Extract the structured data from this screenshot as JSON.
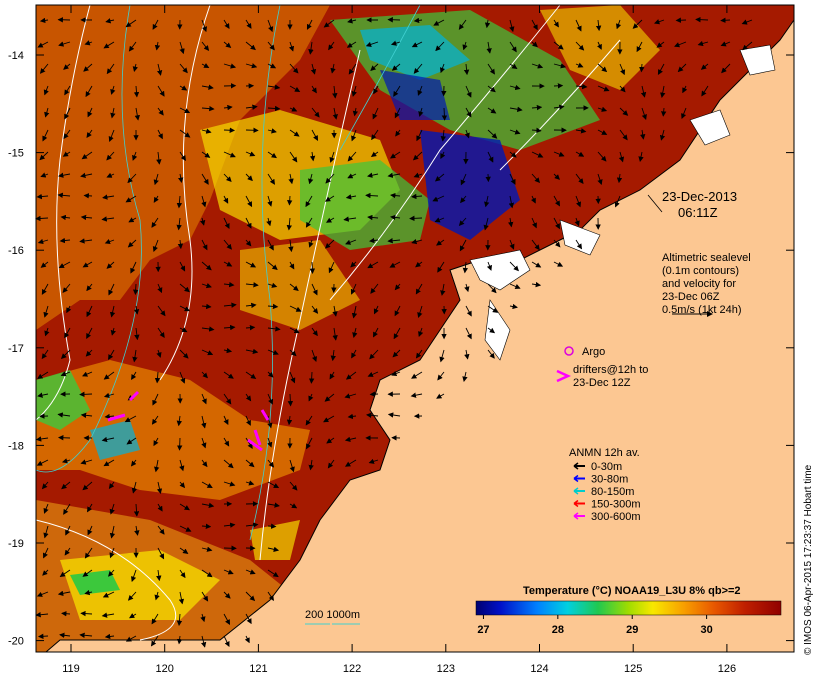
{
  "map": {
    "date_line1": "23-Dec-2013",
    "date_line2": "06:11Z",
    "altimetry_lines": [
      "Altimetric sealevel",
      "(0.1m contours)",
      "and velocity for",
      "23-Dec 06Z",
      "0.5m/s (1kt 24h)"
    ],
    "argo_label": "Argo",
    "drifters_lines": [
      "drifters@12h to",
      "23-Dec 12Z"
    ],
    "anmn_title": "ANMN 12h av.",
    "anmn_items": [
      {
        "label": "0-30m",
        "color": "#000000"
      },
      {
        "label": "30-80m",
        "color": "#0000ff"
      },
      {
        "label": "80-150m",
        "color": "#00cccc"
      },
      {
        "label": "150-300m",
        "color": "#ff0000"
      },
      {
        "label": "300-600m",
        "color": "#ff00ff"
      }
    ],
    "bathy_label": "200  1000m",
    "credit": "© IMOS 06-Apr-2015 17:23:37 Hobart time",
    "colorbar": {
      "title": "Temperature (°C) NOAA19_L3U 8% qb>=2",
      "ticks": [
        "27",
        "28",
        "29",
        "30"
      ],
      "tick_values": [
        27,
        28,
        29,
        30
      ],
      "range": [
        26.9,
        31.0
      ]
    },
    "lat_ticks": [
      "-14",
      "-15",
      "-16",
      "-17",
      "-18",
      "-19",
      "-20"
    ],
    "lon_ticks": [
      "119",
      "120",
      "121",
      "122",
      "123",
      "124",
      "125",
      "126"
    ],
    "colors": {
      "land": "#fcc792",
      "sst_warm": "#a51a00",
      "sst_orange": "#e07a00",
      "sst_yellow": "#f5d800",
      "sst_green": "#3cc83c",
      "sst_cyan": "#00b4dc",
      "sst_blue": "#0018b4",
      "argo": "#dd00dd",
      "drifter": "#ff00ff"
    }
  }
}
